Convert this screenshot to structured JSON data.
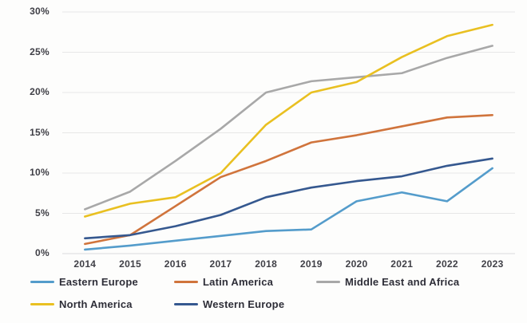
{
  "chart_data": {
    "type": "line",
    "categories": [
      "2014",
      "2015",
      "2016",
      "2017",
      "2018",
      "2019",
      "2020",
      "2021",
      "2022",
      "2023"
    ],
    "series": [
      {
        "name": "Eastern Europe",
        "color": "#549CCB",
        "values": [
          0.5,
          1.0,
          1.6,
          2.2,
          2.8,
          3.0,
          6.5,
          7.6,
          6.5,
          10.6
        ]
      },
      {
        "name": "Latin America",
        "color": "#D0743C",
        "values": [
          1.2,
          2.3,
          5.9,
          9.5,
          11.5,
          13.8,
          14.7,
          15.8,
          16.9,
          17.2
        ]
      },
      {
        "name": "Middle East and Africa",
        "color": "#A8A8A8",
        "values": [
          5.5,
          7.7,
          11.5,
          15.5,
          20.0,
          21.4,
          21.9,
          22.4,
          24.3,
          25.8
        ]
      },
      {
        "name": "North America",
        "color": "#E9C021",
        "values": [
          4.6,
          6.2,
          7.0,
          10.0,
          16.0,
          20.0,
          21.3,
          24.4,
          27.0,
          28.4
        ]
      },
      {
        "name": "Western Europe",
        "color": "#35588F",
        "values": [
          1.9,
          2.3,
          3.4,
          4.8,
          7.0,
          8.2,
          9.0,
          9.6,
          10.9,
          11.8
        ]
      }
    ],
    "ylim": [
      0,
      30
    ],
    "ytick_step": 5,
    "yticks": [
      "0%",
      "5%",
      "10%",
      "15%",
      "20%",
      "25%",
      "30%"
    ],
    "xlabel": "",
    "ylabel": "",
    "grid": true,
    "legend_position": "bottom",
    "legend_rows": [
      [
        "Eastern Europe",
        "Latin America",
        "Middle East and Africa"
      ],
      [
        "North America",
        "Western Europe"
      ]
    ]
  },
  "style_colors": {
    "gridline": "#e7e7e7",
    "baseline": "#dcdcdc",
    "tick_text": "#3f3f46",
    "legend_text": "#2e2e38",
    "background": "#fdfdfc"
  }
}
